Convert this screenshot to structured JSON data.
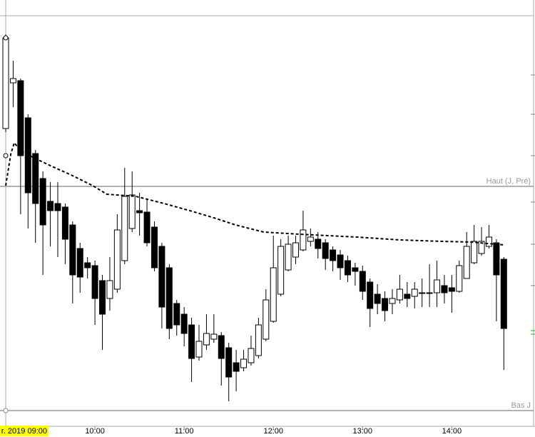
{
  "chart_data": {
    "type": "candlestick",
    "xticks": [
      {
        "value": 0,
        "label": "r. 2019 09:00"
      },
      {
        "value": 12,
        "label": "10:00"
      },
      {
        "value": 24,
        "label": "11:00"
      },
      {
        "value": 36,
        "label": "12:00"
      },
      {
        "value": 48,
        "label": "13:00"
      },
      {
        "value": 60,
        "label": "14:00"
      }
    ],
    "xlim": [
      -0.77,
      71.0
    ],
    "ylim": [
      17,
      612
    ],
    "open": [
      432,
      496,
      499,
      447,
      397,
      362,
      330,
      327,
      322,
      297,
      264,
      244,
      240,
      219,
      194,
      207,
      247,
      292,
      317,
      315,
      294,
      267,
      237,
      187,
      172,
      157,
      112,
      129,
      137,
      142,
      125,
      104,
      97,
      104,
      114,
      137,
      162,
      200,
      234,
      252,
      262,
      274,
      277,
      272,
      262,
      255,
      247,
      237,
      232,
      217,
      200,
      194,
      187,
      192,
      200,
      197,
      202,
      202,
      202,
      212,
      209,
      204,
      222,
      244,
      257,
      267,
      272,
      249
    ],
    "high": [
      564,
      527,
      502,
      452,
      402,
      372,
      357,
      357,
      327,
      302,
      272,
      252,
      247,
      227,
      252,
      312,
      377,
      372,
      342,
      332,
      302,
      272,
      242,
      192,
      182,
      167,
      157,
      172,
      172,
      147,
      132,
      122,
      122,
      142,
      167,
      207,
      282,
      277,
      282,
      282,
      317,
      292,
      287,
      277,
      267,
      262,
      254,
      244,
      240,
      222,
      214,
      204,
      207,
      227,
      217,
      217,
      222,
      242,
      247,
      227,
      227,
      247,
      287,
      297,
      294,
      297,
      277,
      252
    ],
    "low": [
      427,
      462,
      312,
      292,
      272,
      227,
      267,
      252,
      242,
      187,
      202,
      222,
      157,
      122,
      177,
      202,
      242,
      287,
      282,
      267,
      232,
      152,
      137,
      142,
      127,
      77,
      107,
      122,
      132,
      72,
      50,
      64,
      92,
      100,
      110,
      134,
      160,
      197,
      232,
      242,
      260,
      267,
      250,
      234,
      232,
      220,
      217,
      212,
      192,
      154,
      172,
      162,
      172,
      187,
      182,
      180,
      182,
      182,
      182,
      187,
      174,
      202,
      222,
      242,
      254,
      264,
      162,
      94
    ],
    "close": [
      559,
      502,
      394,
      342,
      327,
      297,
      317,
      317,
      277,
      227,
      224,
      237,
      194,
      172,
      219,
      290,
      337,
      339,
      314,
      272,
      237,
      182,
      152,
      157,
      145,
      110,
      134,
      145,
      144,
      110,
      84,
      92,
      109,
      124,
      157,
      192,
      237,
      267,
      270,
      272,
      290,
      280,
      264,
      250,
      247,
      237,
      227,
      232,
      204,
      180,
      187,
      177,
      194,
      207,
      194,
      207,
      201,
      201,
      220,
      202,
      204,
      240,
      267,
      274,
      274,
      280,
      227,
      152
    ],
    "up_color": "#ffffff",
    "down_color": "#000000",
    "moving_average": {
      "x": [
        0,
        0.7,
        1.15,
        2.1,
        4.0,
        6.0,
        8.8,
        11.7,
        13.6,
        17.5,
        21.3,
        25.1,
        28.0,
        30.9,
        34.7,
        39.5,
        47.2,
        53,
        58.7,
        62.6,
        67
      ],
      "values": [
        352,
        397,
        412,
        400,
        390,
        380,
        367,
        352,
        340,
        337,
        327,
        316,
        307,
        297,
        287,
        284,
        280,
        276,
        274,
        273,
        269
      ],
      "color": "#000000"
    },
    "levels": [
      {
        "label": "Haut (J, Pré)",
        "value": 351
      },
      {
        "label": "Bas J",
        "value": 37
      }
    ],
    "level_color": "#999999"
  }
}
